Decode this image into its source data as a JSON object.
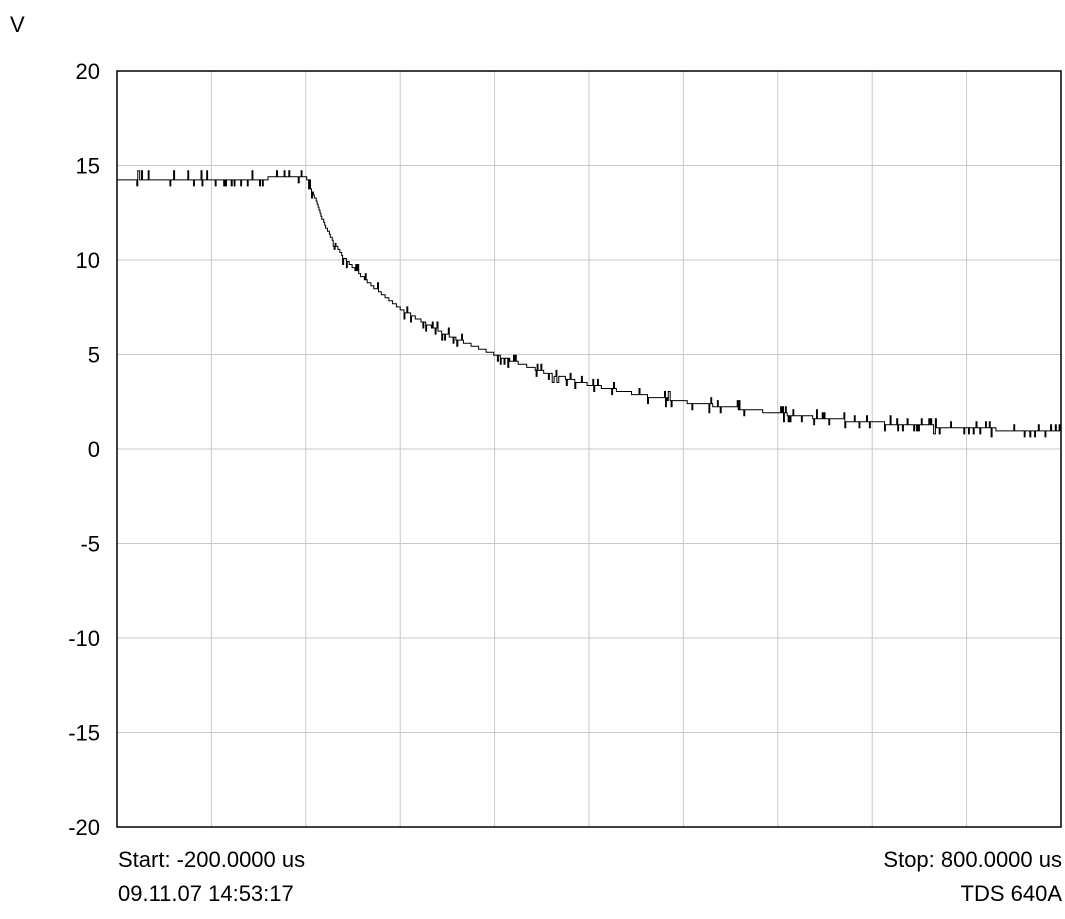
{
  "chart_data": {
    "type": "line",
    "ylabel": "V",
    "ylim": [
      -20,
      20
    ],
    "yticks": [
      20,
      15,
      10,
      5,
      0,
      -5,
      -10,
      -15,
      -20
    ],
    "xlim": [
      -200,
      800
    ],
    "x_divisions": 10,
    "grid": true,
    "series": [
      {
        "x": [
          -200,
          -150,
          -100,
          -50,
          0,
          10,
          20,
          30,
          40,
          60,
          80,
          100,
          150,
          200,
          250,
          300,
          350,
          400,
          450,
          500,
          550,
          600,
          650,
          700,
          750,
          800
        ],
        "y": [
          14.3,
          14.3,
          14.3,
          14.3,
          14.4,
          13.2,
          11.8,
          10.9,
          10.1,
          9.1,
          8.2,
          7.4,
          6.0,
          5.0,
          4.1,
          3.4,
          2.9,
          2.5,
          2.2,
          1.9,
          1.6,
          1.4,
          1.25,
          1.1,
          1.0,
          0.9
        ]
      }
    ],
    "start_label": "Start: -200.0000 us",
    "stop_label": "Stop: 800.0000 us",
    "timestamp": "09.11.07 14:53:17",
    "instrument": "TDS 640A"
  }
}
